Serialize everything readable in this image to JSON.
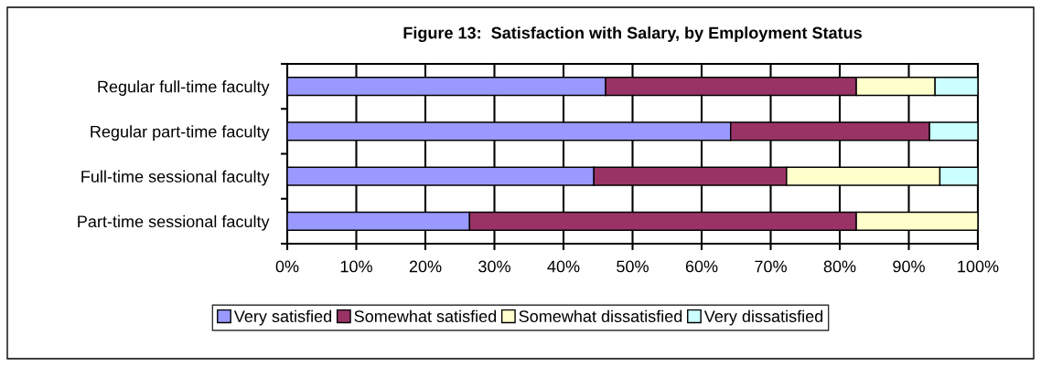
{
  "chart_data": {
    "type": "bar",
    "orientation": "horizontal",
    "stacked": true,
    "title": "Figure 13:  Satisfaction with Salary, by Employment Status",
    "categories": [
      "Regular full-time faculty",
      "Regular part-time faculty",
      "Full-time sessional faculty",
      "Part-time sessional faculty"
    ],
    "series": [
      {
        "name": "Very satisfied",
        "color": "#9999ff",
        "values": [
          46.1,
          64.2,
          44.4,
          26.4
        ]
      },
      {
        "name": "Somewhat satisfied",
        "color": "#993366",
        "values": [
          36.3,
          28.8,
          27.9,
          56.0
        ]
      },
      {
        "name": "Somewhat dissatisfied",
        "color": "#ffffcc",
        "values": [
          11.4,
          null,
          22.2,
          17.6
        ]
      },
      {
        "name": "Very dissatisfied",
        "color": "#ccffff",
        "values": [
          6.2,
          7.0,
          5.5,
          null
        ]
      }
    ],
    "xlim": [
      0,
      100
    ],
    "xticks": [
      {
        "value": 0,
        "label": "0%"
      },
      {
        "value": 10,
        "label": "10%"
      },
      {
        "value": 20,
        "label": "20%"
      },
      {
        "value": 30,
        "label": "30%"
      },
      {
        "value": 40,
        "label": "40%"
      },
      {
        "value": 50,
        "label": "50%"
      },
      {
        "value": 60,
        "label": "60%"
      },
      {
        "value": 70,
        "label": "70%"
      },
      {
        "value": 80,
        "label": "80%"
      },
      {
        "value": 90,
        "label": "90%"
      },
      {
        "value": 100,
        "label": "100%"
      }
    ],
    "grid": "x",
    "legend": "bottom"
  }
}
